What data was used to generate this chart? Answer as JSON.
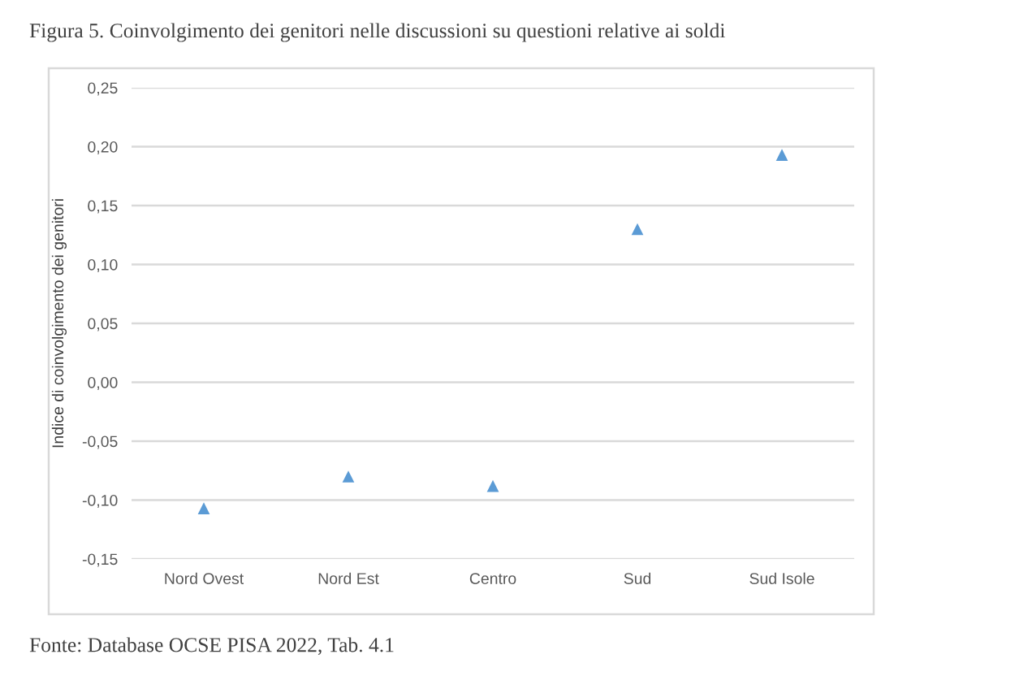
{
  "chart_data": {
    "type": "scatter",
    "title": "Figura 5. Coinvolgimento dei genitori nelle discussioni su questioni relative ai soldi",
    "ylabel": "Indice di coinvolgimento dei genitori",
    "categories": [
      "Nord Ovest",
      "Nord Est",
      "Centro",
      "Sud",
      "Sud Isole"
    ],
    "series": [
      {
        "color": "#5b9bd5",
        "values": [
          -0.107,
          -0.08,
          -0.088,
          0.13,
          0.193
        ]
      }
    ],
    "marker": "triangle",
    "ylim": [
      -0.15,
      0.25
    ],
    "yticks": [
      {
        "value": -0.15,
        "label": "-0,15"
      },
      {
        "value": -0.1,
        "label": "-0,10"
      },
      {
        "value": -0.05,
        "label": "-0,05"
      },
      {
        "value": 0,
        "label": "0,00"
      },
      {
        "value": 0.05,
        "label": "0,05"
      },
      {
        "value": 0.1,
        "label": "0,10"
      },
      {
        "value": 0.15,
        "label": "0,15"
      },
      {
        "value": 0.2,
        "label": "0,20"
      },
      {
        "value": 0.25,
        "label": "0,25"
      }
    ],
    "grid": "y",
    "annotations": [
      "Fonte: Database OCSE PISA 2022, Tab. 4.1"
    ]
  }
}
